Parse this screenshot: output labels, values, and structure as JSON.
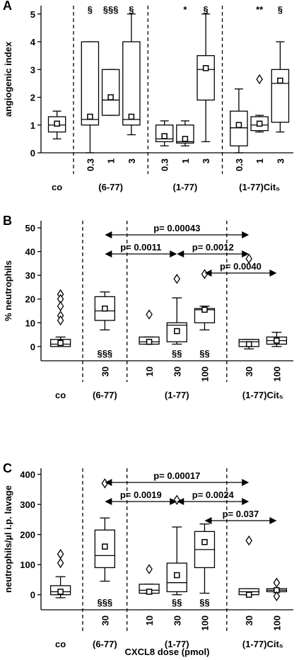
{
  "chart_data": [
    {
      "type": "box",
      "panel": "A",
      "ylabel": "angiogenic index",
      "ylim": [
        0,
        5.3
      ],
      "yticks": [
        0,
        1,
        2,
        3,
        4,
        5
      ],
      "categories": [
        null,
        "0.3",
        "1",
        "3",
        "0.3",
        "1",
        "3",
        "0.3",
        "1",
        "3"
      ],
      "groups": [
        {
          "label": "co",
          "size": 1
        },
        {
          "label": "(6-77)",
          "size": 3
        },
        {
          "label": "(1-77)",
          "size": 3
        },
        {
          "label": "(1-77)Cit₅",
          "size": 3
        }
      ],
      "boxes": [
        {
          "whisker_low": 0.5,
          "q1": 0.75,
          "median": 1.0,
          "q3": 1.3,
          "whisker_high": 1.5,
          "mean": 1.05,
          "outliers": []
        },
        {
          "whisker_low": 0,
          "q1": 1.0,
          "median": 1.2,
          "q3": 4.0,
          "whisker_high": 4.0,
          "mean": 1.3,
          "outliers": []
        },
        {
          "whisker_low": 1.35,
          "q1": 1.35,
          "median": 1.9,
          "q3": 3.0,
          "whisker_high": 3.0,
          "mean": 2.0,
          "outliers": []
        },
        {
          "whisker_low": 0.65,
          "q1": 1.0,
          "median": 1.2,
          "q3": 4.0,
          "whisker_high": 5.0,
          "mean": 1.3,
          "outliers": []
        },
        {
          "whisker_low": 0.25,
          "q1": 0.4,
          "median": 0.5,
          "q3": 1.0,
          "whisker_high": 1.15,
          "mean": 0.6,
          "outliers": []
        },
        {
          "whisker_low": 0.25,
          "q1": 0.35,
          "median": 0.4,
          "q3": 1.0,
          "whisker_high": 1.15,
          "mean": 0.5,
          "outliers": []
        },
        {
          "whisker_low": 0.4,
          "q1": 1.9,
          "median": 3.0,
          "q3": 3.5,
          "whisker_high": 5.0,
          "mean": 3.05,
          "outliers": []
        },
        {
          "whisker_low": 0,
          "q1": 0.25,
          "median": 0.9,
          "q3": 1.5,
          "whisker_high": 2.3,
          "mean": 1.0,
          "outliers": []
        },
        {
          "whisker_low": 0.75,
          "q1": 0.8,
          "median": 1.0,
          "q3": 1.3,
          "whisker_high": 1.35,
          "mean": 1.05,
          "outliers": [
            2.65
          ]
        },
        {
          "whisker_low": 0.75,
          "q1": 1.1,
          "median": 2.5,
          "q3": 3.0,
          "whisker_high": 4.0,
          "mean": 2.6,
          "outliers": []
        }
      ],
      "significance_position": "top",
      "significance": [
        null,
        "§",
        "§§§",
        "§",
        null,
        "*",
        "§",
        null,
        "**",
        "§"
      ],
      "comparisons": []
    },
    {
      "type": "box",
      "panel": "B",
      "ylabel": "% neutrophils",
      "ylim": [
        -6,
        53
      ],
      "yticks": [
        0,
        10,
        20,
        30,
        40,
        50
      ],
      "categories": [
        null,
        "30",
        "10",
        "30",
        "100",
        "30",
        "100"
      ],
      "groups": [
        {
          "label": "co",
          "size": 1
        },
        {
          "label": "(6-77)",
          "size": 1
        },
        {
          "label": "(1-77)",
          "size": 3
        },
        {
          "label": "(1-77)Cit₅",
          "size": 2
        }
      ],
      "boxes": [
        {
          "whisker_low": 0,
          "q1": 0,
          "median": 1,
          "q3": 3,
          "whisker_high": 4,
          "mean": 1.5,
          "outliers": [
            22,
            20,
            17,
            13,
            11
          ]
        },
        {
          "whisker_low": 7,
          "q1": 11,
          "median": 15,
          "q3": 21,
          "whisker_high": 23,
          "mean": 16,
          "outliers": []
        },
        {
          "whisker_low": 1,
          "q1": 1,
          "median": 2,
          "q3": 4,
          "whisker_high": 4,
          "mean": 2,
          "outliers": [
            13.5
          ]
        },
        {
          "whisker_low": 1,
          "q1": 2,
          "median": 9,
          "q3": 10,
          "whisker_high": 20.5,
          "mean": 6.5,
          "outliers": [
            28.5
          ]
        },
        {
          "whisker_low": 7,
          "q1": 10,
          "median": 15.5,
          "q3": 16,
          "whisker_high": 17,
          "mean": 15.5,
          "outliers": [
            30.5
          ]
        },
        {
          "whisker_low": -1,
          "q1": 0,
          "median": 2,
          "q3": 3,
          "whisker_high": 3,
          "mean": 1,
          "outliers": [
            37
          ]
        },
        {
          "whisker_low": 0,
          "q1": 1,
          "median": 2.5,
          "q3": 4,
          "whisker_high": 6,
          "mean": 2.5,
          "outliers": []
        }
      ],
      "significance_position": "bottom",
      "significance": [
        null,
        "§§§",
        null,
        "§§",
        "§§",
        null,
        null
      ],
      "comparisons": [
        {
          "from": 1,
          "to": 5,
          "label": "p= 0.00043"
        },
        {
          "from": 1,
          "to": 3,
          "label": "p= 0.0011"
        },
        {
          "from": 3,
          "to": 5,
          "label": "p= 0.0012"
        },
        {
          "from": 4,
          "to": 6,
          "label": "p= 0.0040"
        }
      ]
    },
    {
      "type": "box",
      "panel": "C",
      "ylabel": "neutrophils/µl i.p. lavage",
      "xlabel": "CXCL8 dose (pmol)",
      "ylim": [
        -50,
        420
      ],
      "yticks": [
        0,
        100,
        200,
        300,
        400
      ],
      "categories": [
        null,
        "30",
        "10",
        "30",
        "100",
        "30",
        "100"
      ],
      "groups": [
        {
          "label": "co",
          "size": 1
        },
        {
          "label": "(6-77)",
          "size": 1
        },
        {
          "label": "(1-77)",
          "size": 3
        },
        {
          "label": "(1-77)Cit₅",
          "size": 2
        }
      ],
      "boxes": [
        {
          "whisker_low": -10,
          "q1": 0,
          "median": 10,
          "q3": 30,
          "whisker_high": 60,
          "mean": 10,
          "outliers": [
            135,
            105
          ]
        },
        {
          "whisker_low": 45,
          "q1": 90,
          "median": 130,
          "q3": 215,
          "whisker_high": 255,
          "mean": 160,
          "outliers": [
            370
          ]
        },
        {
          "whisker_low": 5,
          "q1": 5,
          "median": 15,
          "q3": 35,
          "whisker_high": 35,
          "mean": 10,
          "outliers": [
            85
          ]
        },
        {
          "whisker_low": 0,
          "q1": 10,
          "median": 40,
          "q3": 105,
          "whisker_high": 225,
          "mean": 65,
          "outliers": [
            315
          ]
        },
        {
          "whisker_low": 5,
          "q1": 90,
          "median": 150,
          "q3": 210,
          "whisker_high": 235,
          "mean": 175,
          "outliers": []
        },
        {
          "whisker_low": 0,
          "q1": 0,
          "median": 10,
          "q3": 20,
          "whisker_high": 20,
          "mean": 0,
          "outliers": [
            180
          ]
        },
        {
          "whisker_low": 10,
          "q1": 10,
          "median": 15,
          "q3": 20,
          "whisker_high": 20,
          "mean": 15,
          "outliers": [
            40,
            -5
          ]
        }
      ],
      "significance_position": "bottom",
      "significance": [
        null,
        "§§§",
        null,
        "§§",
        "§§",
        null,
        null
      ],
      "comparisons": [
        {
          "from": 1,
          "to": 5,
          "label": "p= 0.00017"
        },
        {
          "from": 1,
          "to": 3,
          "label": "p= 0.0019"
        },
        {
          "from": 3,
          "to": 5,
          "label": "p= 0.0024"
        },
        {
          "from": 4,
          "to": 6,
          "label": "p= 0.037"
        }
      ]
    }
  ]
}
